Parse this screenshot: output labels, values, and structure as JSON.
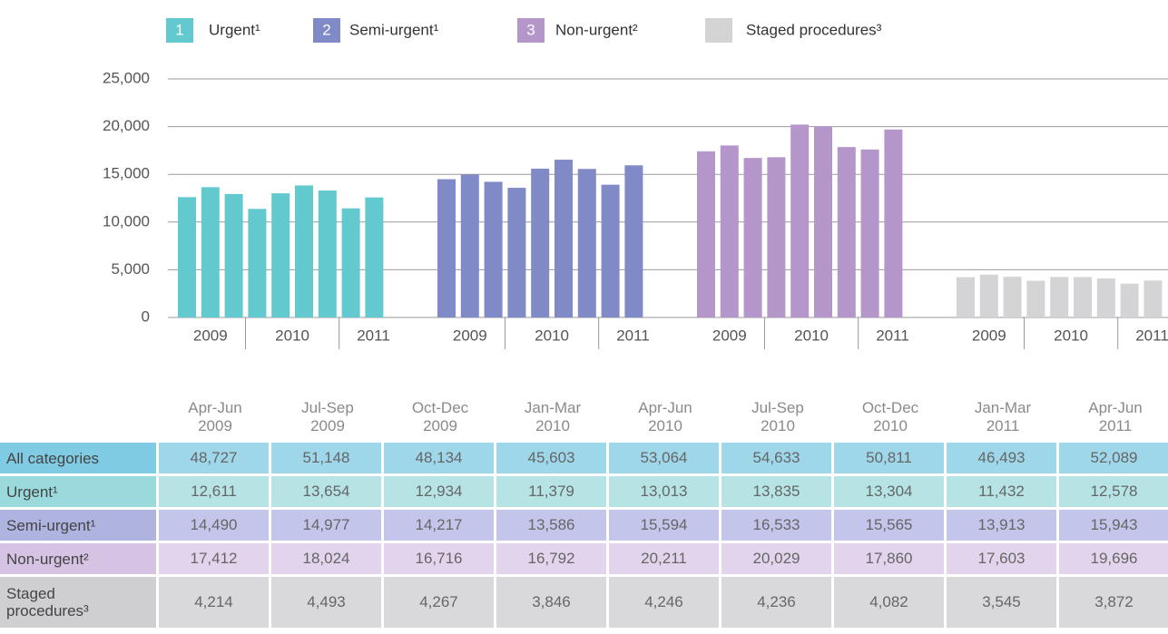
{
  "chart_data": {
    "type": "bar",
    "categories": [
      "Apr-Jun 2009",
      "Jul-Sep 2009",
      "Oct-Dec 2009",
      "Jan-Mar 2010",
      "Apr-Jun 2010",
      "Jul-Sep 2010",
      "Oct-Dec 2010",
      "Jan-Mar 2011",
      "Apr-Jun 2011"
    ],
    "years": [
      "2009",
      "2010",
      "2011"
    ],
    "ylim": [
      0,
      25000
    ],
    "yticks": [
      0,
      {
        "value": 5000,
        "label": "5,000"
      },
      {
        "value": 10000,
        "label": "10,000"
      },
      {
        "value": 15000,
        "label": "15,000"
      },
      {
        "value": 20000,
        "label": "20,000"
      },
      {
        "value": 25000,
        "label": "25,000"
      }
    ],
    "grid": true,
    "series": [
      {
        "name": "Urgent¹",
        "badge": "1",
        "color": "#62c9cf",
        "values": [
          12611,
          13654,
          12934,
          11379,
          13013,
          13835,
          13304,
          11432,
          12578
        ],
        "value_labels": [
          "12,611",
          "13,654",
          "12,934",
          "11,379",
          "13,013",
          "13,835",
          "13,304",
          "11,432",
          "12,578"
        ]
      },
      {
        "name": "Semi-urgent¹",
        "badge": "2",
        "color": "#7f8ac6",
        "values": [
          14490,
          14977,
          14217,
          13586,
          15594,
          16533,
          15565,
          13913,
          15943
        ],
        "value_labels": [
          "14,490",
          "14,977",
          "14,217",
          "13,586",
          "15,594",
          "16,533",
          "15,565",
          "13,913",
          "15,943"
        ]
      },
      {
        "name": "Non-urgent²",
        "badge": "3",
        "color": "#b596cb",
        "values": [
          17412,
          18024,
          16716,
          16792,
          20211,
          20029,
          17860,
          17603,
          19696
        ],
        "value_labels": [
          "17,412",
          "18,024",
          "16,716",
          "16,792",
          "20,211",
          "20,029",
          "17,860",
          "17,603",
          "19,696"
        ]
      },
      {
        "name": "Staged procedures³",
        "color": "#d4d4d6",
        "values": [
          4214,
          4493,
          4267,
          3846,
          4246,
          4236,
          4082,
          3545,
          3872
        ],
        "value_labels": [
          "4,214",
          "4,493",
          "4,267",
          "3,846",
          "4,246",
          "4,236",
          "4,082",
          "3,545",
          "3,872"
        ]
      }
    ]
  },
  "table": {
    "total_label": "All categories",
    "totals": [
      "48,727",
      "51,148",
      "48,134",
      "45,603",
      "53,064",
      "54,633",
      "50,811",
      "46,493",
      "52,089"
    ]
  }
}
